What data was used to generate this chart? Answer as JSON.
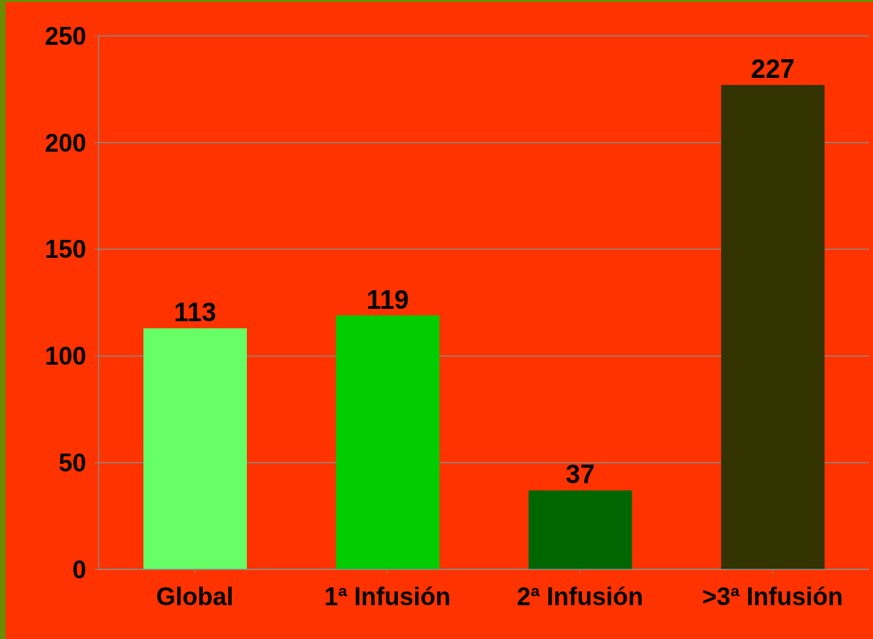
{
  "chart_data": {
    "type": "bar",
    "categories": [
      "Global",
      "1ª Infusión",
      "2ª Infusión",
      ">3ª Infusión"
    ],
    "values": [
      113,
      119,
      37,
      227
    ],
    "colors": [
      "#66ff66",
      "#00cc00",
      "#006600",
      "#333300"
    ],
    "ylim": [
      0,
      250
    ],
    "yticks": [
      0,
      50,
      100,
      150,
      200,
      250
    ],
    "grid": "y",
    "data_labels": true
  }
}
